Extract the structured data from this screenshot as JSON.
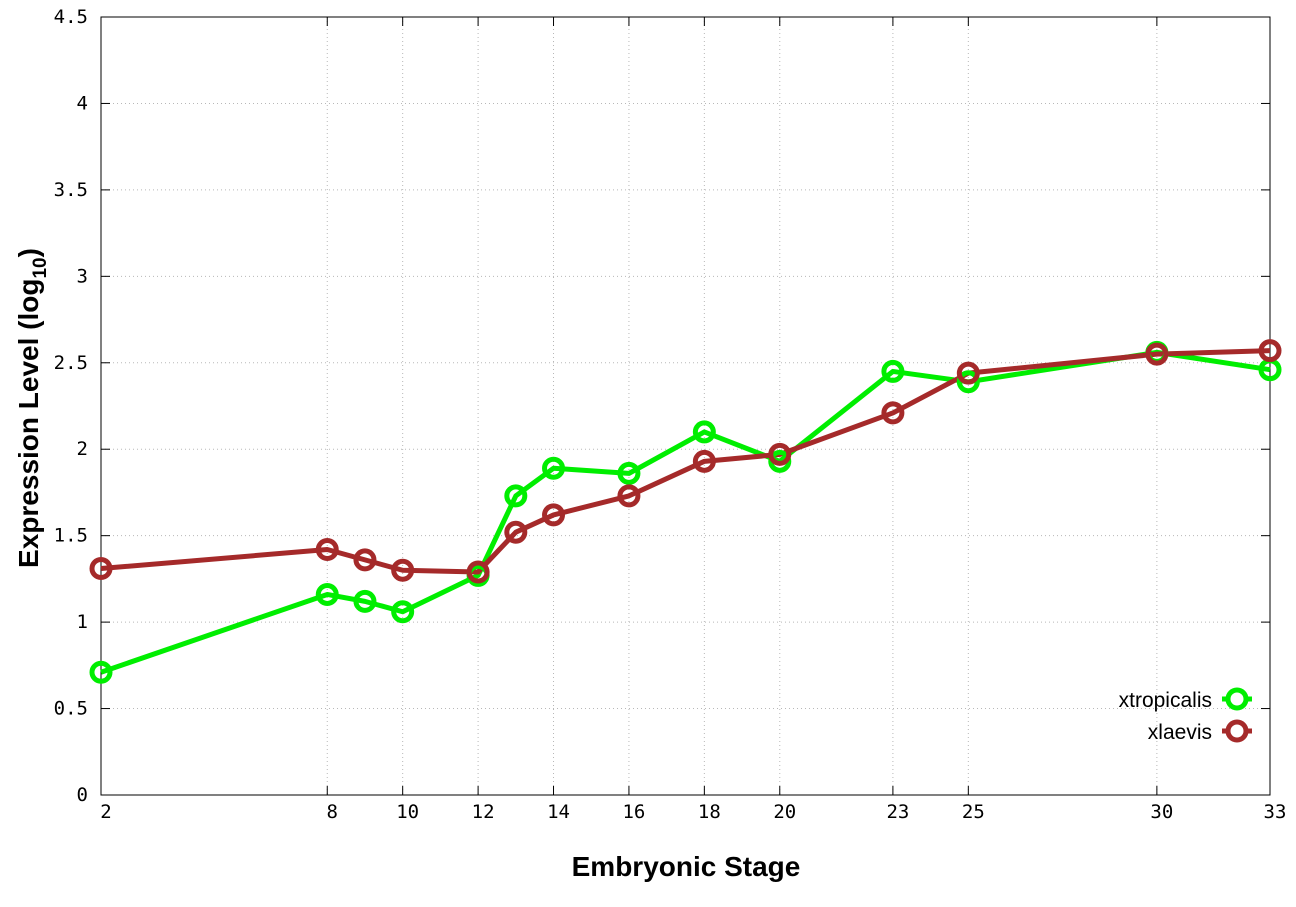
{
  "chart_data": {
    "type": "line",
    "title": "",
    "xlabel": "Embryonic Stage",
    "ylabel": "Expression Level (log",
    "ylabel_sub": "10",
    "ylabel_close": ")",
    "xlim": [
      2,
      33
    ],
    "ylim": [
      0,
      4.5
    ],
    "x_ticks": [
      2,
      8,
      10,
      12,
      14,
      16,
      18,
      20,
      23,
      25,
      30,
      33
    ],
    "x_tick_labels": [
      "2",
      "8",
      "10",
      "12",
      "14",
      "16",
      "18",
      "20",
      "23",
      "25",
      "30",
      "33"
    ],
    "y_ticks": [
      0,
      0.5,
      1,
      1.5,
      2,
      2.5,
      3,
      3.5,
      4,
      4.5
    ],
    "y_tick_labels": [
      "0",
      "0.5",
      "1",
      "1.5",
      "2",
      "2.5",
      "3",
      "3.5",
      "4",
      "4.5"
    ],
    "grid": true,
    "legend_position": "bottom-right",
    "x": [
      2,
      8,
      9,
      10,
      12,
      13,
      14,
      16,
      18,
      20,
      23,
      25,
      30,
      33
    ],
    "series": [
      {
        "name": "xtropicalis",
        "color": "#00ee00",
        "marker": "open-circle",
        "values": [
          0.71,
          1.16,
          1.12,
          1.06,
          1.27,
          1.73,
          1.89,
          1.86,
          2.1,
          1.93,
          2.45,
          2.39,
          2.56,
          2.46
        ]
      },
      {
        "name": "xlaevis",
        "color": "#a52a2a",
        "marker": "open-circle",
        "values": [
          1.31,
          1.42,
          1.36,
          1.3,
          1.29,
          1.52,
          1.62,
          1.73,
          1.93,
          1.97,
          2.21,
          2.44,
          2.55,
          2.57
        ]
      }
    ]
  }
}
